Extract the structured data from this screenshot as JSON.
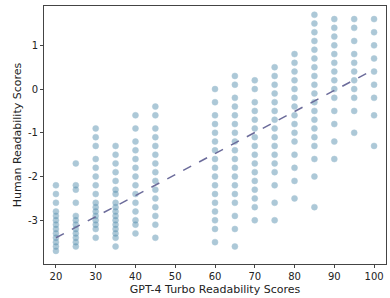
{
  "chart_data": {
    "type": "scatter",
    "x_label": "GPT-4 Turbo Readability Scores",
    "y_label": "Human Readability Scores",
    "xlim": [
      17,
      103
    ],
    "ylim": [
      -4.0,
      1.9
    ],
    "xticks": [
      20,
      30,
      40,
      50,
      60,
      70,
      80,
      90,
      100
    ],
    "yticks": [
      -3,
      -2,
      -1,
      0,
      1
    ],
    "grid": false,
    "series": [
      {
        "type": "scatter",
        "color": "#4a87a8",
        "marker": "circle",
        "x": [
          20,
          20,
          20,
          20,
          20,
          20,
          20,
          20,
          20,
          20,
          20,
          20,
          20,
          25,
          25,
          25,
          25,
          25,
          25,
          25,
          25,
          25,
          25,
          25,
          25,
          30,
          30,
          30,
          30,
          30,
          30,
          30,
          30,
          30,
          30,
          30,
          30,
          30,
          30,
          30,
          30,
          35,
          35,
          35,
          35,
          35,
          35,
          35,
          35,
          35,
          35,
          35,
          35,
          35,
          35,
          35,
          35,
          35,
          40,
          40,
          40,
          40,
          40,
          40,
          40,
          40,
          40,
          40,
          40,
          40,
          40,
          40,
          45,
          45,
          45,
          45,
          45,
          45,
          45,
          45,
          45,
          45,
          45,
          45,
          45,
          45,
          45,
          60,
          60,
          60,
          60,
          60,
          60,
          60,
          60,
          60,
          60,
          60,
          60,
          60,
          60,
          60,
          60,
          60,
          65,
          65,
          65,
          65,
          65,
          65,
          65,
          65,
          65,
          65,
          65,
          65,
          65,
          65,
          65,
          65,
          65,
          65,
          70,
          70,
          70,
          70,
          70,
          70,
          70,
          70,
          70,
          70,
          70,
          70,
          70,
          70,
          70,
          70,
          75,
          75,
          75,
          75,
          75,
          75,
          75,
          75,
          75,
          75,
          75,
          75,
          75,
          75,
          75,
          75,
          80,
          80,
          80,
          80,
          80,
          80,
          80,
          80,
          80,
          80,
          80,
          80,
          80,
          80,
          80,
          85,
          85,
          85,
          85,
          85,
          85,
          85,
          85,
          85,
          85,
          85,
          85,
          85,
          85,
          85,
          85,
          85,
          85,
          85,
          90,
          90,
          90,
          90,
          90,
          90,
          90,
          90,
          90,
          90,
          90,
          90,
          90,
          90,
          95,
          95,
          95,
          95,
          95,
          95,
          95,
          95,
          95,
          95,
          95,
          100,
          100,
          100,
          100,
          100,
          100,
          100,
          100,
          100
        ],
        "values": [
          -2.2,
          -2.4,
          -2.6,
          -2.8,
          -2.9,
          -3.0,
          -3.1,
          -3.2,
          -3.3,
          -3.4,
          -3.5,
          -3.6,
          -3.7,
          -1.7,
          -2.2,
          -2.3,
          -2.6,
          -2.9,
          -3.0,
          -3.1,
          -3.2,
          -3.3,
          -3.4,
          -3.5,
          -3.6,
          -0.9,
          -1.1,
          -1.3,
          -1.6,
          -1.8,
          -2.0,
          -2.2,
          -2.4,
          -2.6,
          -2.7,
          -2.8,
          -2.9,
          -3.0,
          -3.1,
          -3.2,
          -3.4,
          -1.3,
          -1.5,
          -1.7,
          -1.9,
          -2.1,
          -2.3,
          -2.4,
          -2.6,
          -2.7,
          -2.8,
          -2.9,
          -3.0,
          -3.1,
          -3.2,
          -3.3,
          -3.4,
          -3.6,
          -0.6,
          -0.9,
          -1.2,
          -1.4,
          -1.6,
          -1.8,
          -2.0,
          -2.2,
          -2.4,
          -2.6,
          -2.8,
          -3.0,
          -3.1,
          -3.3,
          -0.4,
          -0.6,
          -0.9,
          -1.1,
          -1.3,
          -1.5,
          -1.7,
          -1.9,
          -2.1,
          -2.3,
          -2.5,
          -2.7,
          -2.9,
          -3.1,
          -3.4,
          0.0,
          -0.3,
          -0.6,
          -0.8,
          -1.0,
          -1.2,
          -1.4,
          -1.6,
          -1.8,
          -2.0,
          -2.2,
          -2.4,
          -2.6,
          -2.8,
          -3.0,
          -3.2,
          -3.5,
          0.3,
          0.1,
          -0.2,
          -0.4,
          -0.6,
          -0.8,
          -1.0,
          -1.2,
          -1.4,
          -1.6,
          -1.8,
          -2.0,
          -2.2,
          -2.4,
          -2.6,
          -2.9,
          -3.2,
          -3.6,
          0.2,
          0.0,
          -0.3,
          -0.5,
          -0.7,
          -0.9,
          -1.1,
          -1.3,
          -1.5,
          -1.7,
          -1.9,
          -2.1,
          -2.3,
          -2.5,
          -2.7,
          -3.0,
          0.5,
          0.3,
          0.1,
          -0.1,
          -0.3,
          -0.5,
          -0.7,
          -0.9,
          -1.1,
          -1.3,
          -1.5,
          -1.7,
          -1.9,
          -2.2,
          -2.6,
          -3.0,
          0.8,
          0.6,
          0.4,
          0.2,
          0.0,
          -0.2,
          -0.4,
          -0.6,
          -0.8,
          -1.0,
          -1.2,
          -1.5,
          -1.8,
          -2.1,
          -2.5,
          1.7,
          1.5,
          1.3,
          1.1,
          0.9,
          0.7,
          0.5,
          0.3,
          0.1,
          -0.1,
          -0.3,
          -0.5,
          -0.7,
          -0.9,
          -1.1,
          -1.3,
          -1.6,
          -2.0,
          -2.7,
          1.6,
          1.4,
          1.2,
          1.0,
          0.8,
          0.6,
          0.4,
          0.2,
          0.0,
          -0.2,
          -0.5,
          -0.8,
          -1.2,
          -1.6,
          1.6,
          1.4,
          1.1,
          0.8,
          0.6,
          0.4,
          0.2,
          0.0,
          -0.2,
          -0.5,
          -1.0,
          1.6,
          1.3,
          1.0,
          0.7,
          0.4,
          0.1,
          -0.2,
          -0.6,
          -1.3
        ]
      },
      {
        "type": "line",
        "color": "#6b6b9a",
        "line_style": "dashed",
        "x": [
          20,
          100
        ],
        "values": [
          -3.4,
          0.45
        ]
      }
    ]
  }
}
